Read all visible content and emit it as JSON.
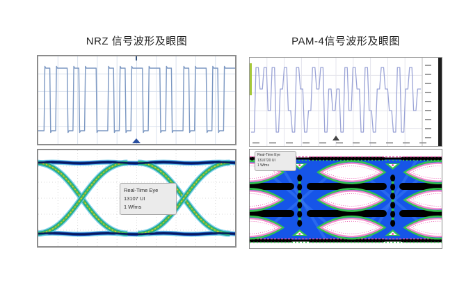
{
  "page": {
    "background": "#ffffff"
  },
  "nrz": {
    "title": "NRZ 信号波形及眼图",
    "eye_label": {
      "line1": "Real-Time Eye",
      "line2": "13107 UI",
      "line3": "1 Wfms"
    }
  },
  "pam4": {
    "title": "PAM-4信号波形及眼图",
    "eye_label": {
      "line1": "Real-Time Eye",
      "line2": "1310720 UI",
      "line3": "1 Wfms"
    }
  },
  "chart_data": [
    {
      "id": "nrz-waveform",
      "type": "line",
      "title": "NRZ signal waveform (2-level square wave)",
      "bits": [
        0,
        1,
        0,
        1,
        1,
        0,
        1,
        0,
        1,
        1,
        0,
        0,
        1,
        0,
        1,
        0,
        1,
        1,
        0,
        1,
        1,
        0,
        1,
        0,
        0,
        1,
        0,
        1,
        1,
        0,
        1,
        0,
        1,
        1
      ],
      "levels": {
        "high": 1,
        "low": 0
      },
      "line_color": "#7b97c2",
      "grid_color": "#d9e1ed",
      "grid": true,
      "marker_color": "#2a4fa0"
    },
    {
      "id": "nrz-eye",
      "type": "heatmap",
      "title": "NRZ real-time eye diagram (1 eye level, 2 crossings shown)",
      "crossings_rel_x": [
        0.22,
        0.74
      ],
      "rails_rel_y": [
        0.13,
        0.87
      ],
      "annotation": [
        "Real-Time Eye",
        "13107 UI",
        "1 Wfms"
      ],
      "colors": {
        "halo": "#5cc7e6",
        "rail_mid": "#1040b0",
        "rail_core": "#07195c",
        "arm_teal": "#17a191",
        "arm_green": "#46bf50",
        "core_yellow": "#d7c63a",
        "core_orange": "#df7f2e",
        "grid": "#d8d8d8"
      }
    },
    {
      "id": "pam4-waveform",
      "type": "line",
      "title": "PAM-4 signal waveform (4-level signal)",
      "symbols": [
        0,
        3,
        2,
        3,
        1,
        3,
        0,
        2,
        3,
        1,
        0,
        3,
        2,
        0,
        1,
        3,
        2,
        3,
        0,
        2,
        1,
        2,
        0,
        3,
        1,
        3,
        2,
        0,
        3,
        1,
        0,
        2,
        3,
        2,
        1,
        0,
        3,
        0,
        2,
        3,
        1,
        2
      ],
      "levels": [
        0,
        1,
        2,
        3
      ],
      "line_color": "#9aa3d6",
      "grid_color": "#e4e4ec",
      "tick_color": "#8f8f8f",
      "marker_color": "#444444"
    },
    {
      "id": "pam4-eye",
      "type": "heatmap",
      "title": "PAM-4 real-time eye diagram (3 stacked eye rows, 2 UI shown)",
      "eye_rows_rel_y": [
        0.23,
        0.51,
        0.79
      ],
      "eye_cols_rel_x": [
        0.0,
        0.53,
        0.98
      ],
      "crossing_cols_rel_x": [
        0.26,
        0.745
      ],
      "annotation": [
        "Real-Time Eye",
        "1310720 UI",
        "1 Wfms"
      ],
      "colors": {
        "body": "#1655e8",
        "streak": "#3d7ef2",
        "dense": "#000000",
        "fringe_green": "#34c34e",
        "outline_pink": "#f490cc",
        "speckle_magenta": "#e84aa8",
        "open": "#ffffff"
      }
    }
  ]
}
